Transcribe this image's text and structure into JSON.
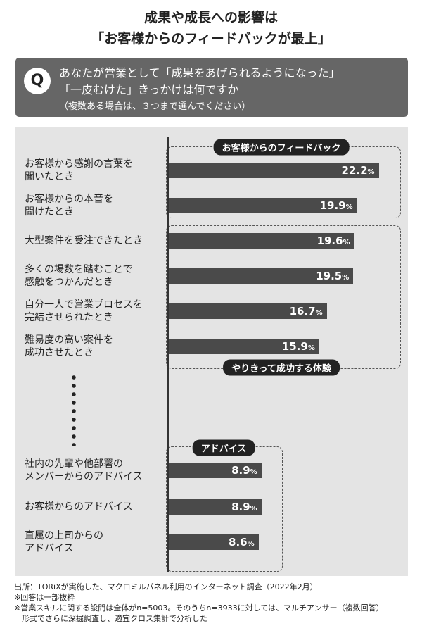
{
  "title_line1": "成果や成長への影響は",
  "title_line2": "「お客様からのフィードバックが最上」",
  "question": {
    "badge": "Q",
    "line1": "あなたが営業として「成果をあげられるようになった」",
    "line2": "「一皮むけた」きっかけは何ですか",
    "line3": "（複数ある場合は、３つまで選んでください）"
  },
  "chart_data": {
    "type": "bar",
    "orientation": "horizontal",
    "unit": "%",
    "bar_color": "#4a4a4a",
    "panel_color": "#e4e4e4",
    "groups": [
      {
        "name": "お客様からのフィードバック",
        "items": [
          0,
          1
        ]
      },
      {
        "name": "やりきって成功する体験",
        "items": [
          2,
          3,
          4,
          5
        ]
      },
      {
        "name": "アドバイス",
        "items": [
          6,
          7,
          8
        ]
      }
    ],
    "categories": [
      "お客様から感謝の言葉を\n聞いたとき",
      "お客様からの本音を\n聞けたとき",
      "大型案件を受注できたとき",
      "多くの場数を踏むことで\n感触をつかんだとき",
      "自分一人で営業プロセスを\n完結させられたとき",
      "難易度の高い案件を\n成功させたとき",
      "社内の先輩や他部署の\nメンバーからのアドバイス",
      "お客様からのアドバイス",
      "直属の上司からの\nアドバイス"
    ],
    "values": [
      22.2,
      19.9,
      19.6,
      19.5,
      16.7,
      15.9,
      8.9,
      8.9,
      8.6
    ]
  },
  "footer": [
    "出所：TORiXが実施した、マクロミルパネル利用のインターネット調査（2022年2月）",
    "※回答は一部抜粋",
    "※営業スキルに関する設問は全体がn=5003。そのうちn=3933に対しては、マルチアンサー（複数回答）",
    "　形式でさらに深掘調査し、適宜クロス集計で分析した"
  ]
}
